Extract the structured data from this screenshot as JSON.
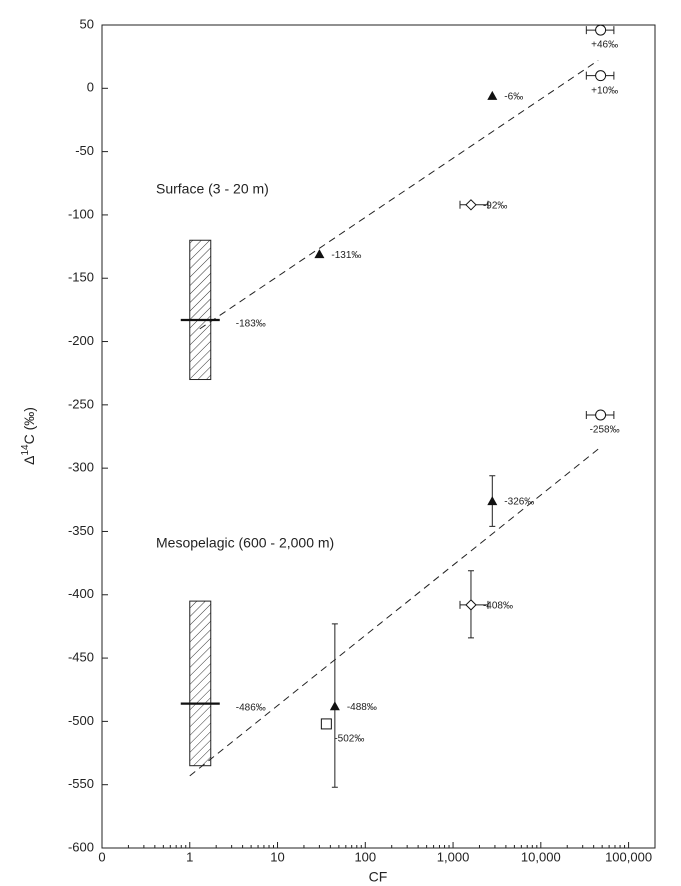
{
  "chart_data": {
    "type": "scatter",
    "xlabel": "CF",
    "ylabel": [
      "Δ",
      "14",
      "C (‰)"
    ],
    "xscale": "log",
    "xlim": [
      0.1,
      200000
    ],
    "xticks": [
      {
        "value": 0.1,
        "label": "0"
      },
      1,
      10,
      100,
      {
        "value": 1000,
        "label": "1,000"
      },
      {
        "value": 10000,
        "label": "10,000"
      },
      {
        "value": 100000,
        "label": "100,000"
      }
    ],
    "ylim": [
      -600,
      50
    ],
    "yticks": [
      -600,
      -550,
      -500,
      -450,
      -400,
      -350,
      -300,
      -250,
      -200,
      -150,
      -100,
      -50,
      0,
      50
    ],
    "annotations": [
      "Surface (3 - 20 m)",
      "Mesopelagic (600 - 2,000 m)"
    ],
    "ranges": {
      "x": [
        1,
        1
      ],
      "low": [
        -230,
        -535
      ],
      "high": [
        -120,
        -405
      ],
      "values": [
        -183,
        -486
      ],
      "value_labels": [
        "-183‰",
        "-486‰"
      ]
    },
    "series": [
      {
        "marker": "triangle",
        "color": "#111111",
        "x": [
          30,
          2800,
          2800,
          45
        ],
        "values": [
          -131,
          -6,
          -326,
          -488
        ],
        "value_labels": [
          "-131‰",
          "-6‰",
          "-326‰",
          "-488‰"
        ],
        "yerr_low": [
          null,
          null,
          -346,
          -552
        ],
        "yerr_high": [
          null,
          null,
          -306,
          -423
        ]
      },
      {
        "marker": "diamond",
        "color": "#111111",
        "x": [
          1600,
          1600
        ],
        "values": [
          -92,
          -408
        ],
        "value_labels": [
          "-92‰",
          "-408‰"
        ],
        "xerr_low": [
          1200,
          1200
        ],
        "xerr_high": [
          2500,
          2500
        ],
        "yerr_low": [
          null,
          -434
        ],
        "yerr_high": [
          null,
          -381
        ]
      },
      {
        "marker": "circle",
        "color": "#111111",
        "x": [
          48000,
          48000,
          48000
        ],
        "values": [
          46,
          10,
          -258
        ],
        "value_labels": [
          "+46‰",
          "+10‰",
          "-258‰"
        ],
        "xerr_low": [
          33000,
          33000,
          33000
        ],
        "xerr_high": [
          68000,
          68000,
          68000
        ]
      },
      {
        "marker": "square",
        "color": "#111111",
        "x": [
          36
        ],
        "values": [
          -502
        ],
        "value_labels": [
          "-502‰"
        ]
      }
    ],
    "fits": [
      {
        "x": [
          1.3,
          45000
        ],
        "values": [
          -190,
          22
        ]
      },
      {
        "x": [
          1,
          45000
        ],
        "values": [
          -543,
          -285
        ]
      }
    ]
  }
}
